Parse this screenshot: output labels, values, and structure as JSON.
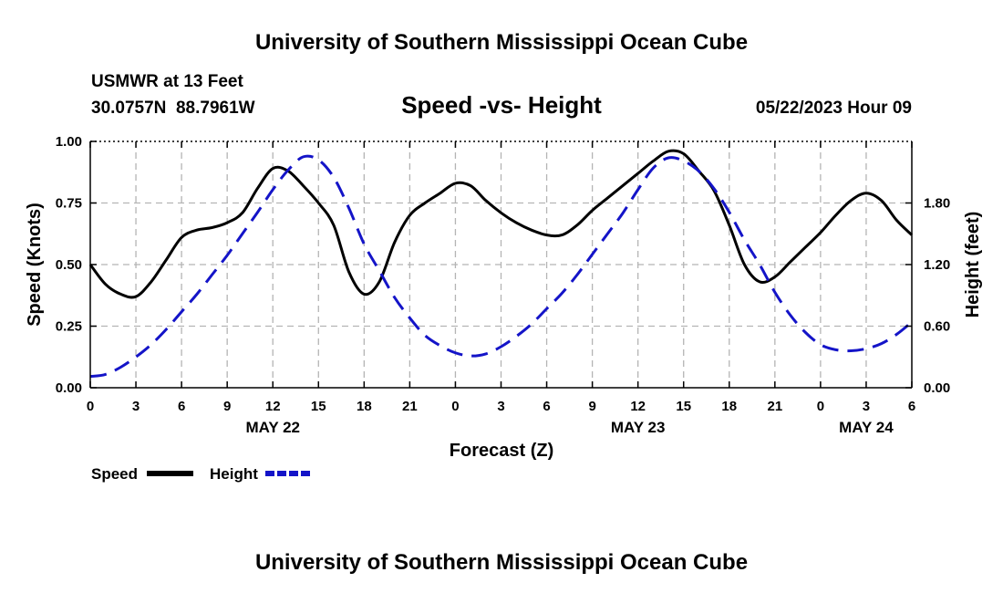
{
  "page": {
    "title": "University of Southern Mississippi Ocean Cube",
    "footer_title": "University of Southern Mississippi Ocean Cube",
    "station": "USMWR at 13 Feet",
    "location": "30.0757N  88.7961W",
    "datetime": "05/22/2023 Hour 09"
  },
  "chart_data": {
    "type": "line",
    "title": "Speed -vs- Height",
    "xlabel": "Forecast (Z)",
    "ylabel_left": "Speed (Knots)",
    "ylabel_right": "Height (feet)",
    "x_hours_range": [
      0,
      54
    ],
    "x_tick_labels": [
      "0",
      "3",
      "6",
      "9",
      "12",
      "15",
      "18",
      "21",
      "0",
      "3",
      "6",
      "9",
      "12",
      "15",
      "18",
      "21",
      "0",
      "3",
      "6"
    ],
    "date_labels": [
      {
        "label": "MAY 22",
        "hour": 12
      },
      {
        "label": "MAY 23",
        "hour": 36
      },
      {
        "label": "MAY 24",
        "hour": 51
      }
    ],
    "ylim_left": [
      0,
      1
    ],
    "yticks_left": [
      "0.00",
      "0.25",
      "0.50",
      "0.75",
      "1.00"
    ],
    "ylim_right": [
      0,
      2.4
    ],
    "yticks_right": [
      "0.00",
      "0.60",
      "1.20",
      "1.80"
    ],
    "grid": true,
    "series": [
      {
        "name": "Speed",
        "axis": "left",
        "color": "#000000",
        "style": "solid",
        "x": [
          0,
          1,
          2,
          3,
          4,
          5,
          6,
          7,
          8,
          9,
          10,
          11,
          12,
          13,
          14,
          15,
          16,
          17,
          18,
          19,
          20,
          21,
          22,
          23,
          24,
          25,
          26,
          27,
          28,
          29,
          30,
          31,
          32,
          33,
          34,
          35,
          36,
          37,
          38,
          39,
          40,
          41,
          42,
          43,
          44,
          45,
          46,
          47,
          48,
          49,
          50,
          51,
          52,
          53,
          54
        ],
        "values": [
          0.5,
          0.42,
          0.38,
          0.37,
          0.43,
          0.52,
          0.61,
          0.64,
          0.65,
          0.67,
          0.71,
          0.81,
          0.89,
          0.88,
          0.82,
          0.75,
          0.66,
          0.47,
          0.38,
          0.43,
          0.59,
          0.7,
          0.75,
          0.79,
          0.83,
          0.82,
          0.76,
          0.71,
          0.67,
          0.64,
          0.62,
          0.62,
          0.66,
          0.72,
          0.77,
          0.82,
          0.87,
          0.92,
          0.96,
          0.95,
          0.88,
          0.8,
          0.66,
          0.5,
          0.43,
          0.45,
          0.51,
          0.57,
          0.63,
          0.7,
          0.76,
          0.79,
          0.76,
          0.68,
          0.62
        ]
      },
      {
        "name": "Height",
        "axis": "right",
        "color": "#1414c8",
        "style": "dashed",
        "x": [
          0,
          1,
          2,
          3,
          4,
          5,
          6,
          7,
          8,
          9,
          10,
          11,
          12,
          13,
          14,
          15,
          16,
          17,
          18,
          19,
          20,
          21,
          22,
          23,
          24,
          25,
          26,
          27,
          28,
          29,
          30,
          31,
          32,
          33,
          34,
          35,
          36,
          37,
          38,
          39,
          40,
          41,
          42,
          43,
          44,
          45,
          46,
          47,
          48,
          49,
          50,
          51,
          52,
          53,
          54
        ],
        "values": [
          0.11,
          0.13,
          0.2,
          0.3,
          0.42,
          0.57,
          0.74,
          0.91,
          1.1,
          1.29,
          1.5,
          1.71,
          1.93,
          2.12,
          2.25,
          2.22,
          2.05,
          1.75,
          1.4,
          1.14,
          0.88,
          0.68,
          0.51,
          0.41,
          0.34,
          0.31,
          0.33,
          0.4,
          0.5,
          0.62,
          0.77,
          0.92,
          1.1,
          1.3,
          1.5,
          1.7,
          1.93,
          2.14,
          2.24,
          2.21,
          2.11,
          1.94,
          1.71,
          1.44,
          1.2,
          0.93,
          0.71,
          0.54,
          0.42,
          0.37,
          0.36,
          0.38,
          0.43,
          0.52,
          0.64
        ]
      }
    ],
    "legend": [
      {
        "label": "Speed",
        "color": "#000000",
        "style": "solid"
      },
      {
        "label": "Height",
        "color": "#1414c8",
        "style": "dashed"
      }
    ],
    "legend_placement": "bottom-left"
  }
}
